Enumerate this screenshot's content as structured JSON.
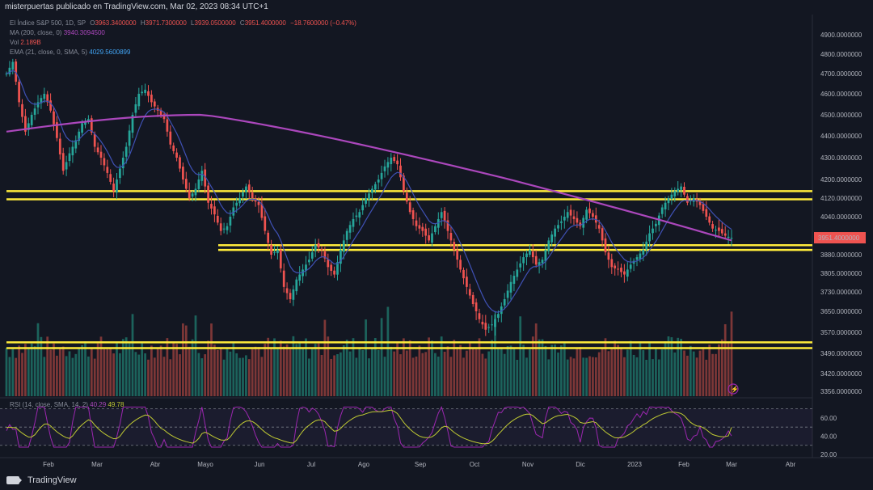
{
  "header": {
    "publisher_line": "misterpuertas publicado en TradingView.com, Mar 02, 2023 08:34 UTC+1"
  },
  "legend": {
    "symbol": "El Índice S&P 500, 1D, SP",
    "open_label": "O",
    "open": "3963.3400000",
    "high_label": "H",
    "high": "3971.7300000",
    "low_label": "L",
    "low": "3939.0500000",
    "close_label": "C",
    "close": "3951.4000000",
    "change": "−18.7600000 (−0.47%)",
    "ma_label": "MA (200, close, 0)",
    "ma_value": "3940.3094500",
    "vol_label": "Vol",
    "vol_value": "2.189B",
    "ema_label": "EMA (21, close, 0, SMA, 5)",
    "ema_value": "4029.5600899"
  },
  "price_axis": {
    "ticks": [
      "4900.0000000",
      "4800.0000000",
      "4700.0000000",
      "4600.0000000",
      "4500.0000000",
      "4400.0000000",
      "4300.0000000",
      "4200.0000000",
      "4120.0000000",
      "4040.0000000",
      "3951.4000000",
      "3880.0000000",
      "3805.0000000",
      "3730.0000000",
      "3650.0000000",
      "3570.0000000",
      "3490.0000000",
      "3420.0000000",
      "3356.0000000"
    ],
    "last_price_label": "3951.4000000",
    "rsi_ticks": [
      "60.00",
      "40.00",
      "20.00"
    ]
  },
  "rsi_legend": {
    "label": "RSI (14, close, SMA, 14, 2)",
    "value1": "40.29",
    "value2": "49.78"
  },
  "time_axis": {
    "labels": [
      "Feb",
      "Mar",
      "Abr",
      "Mayo",
      "Jun",
      "Jul",
      "Ago",
      "Sep",
      "Oct",
      "Nov",
      "Dic",
      "2023",
      "Feb",
      "Mar",
      "Abr"
    ]
  },
  "footer": {
    "brand": "TradingView"
  },
  "colors": {
    "background": "#131722",
    "up": "#26a69a",
    "down": "#ef5350",
    "ma200": "#ab47bc",
    "ema21": "#3f51b5",
    "level": "#ffeb3b",
    "rsi": "#9c27b0",
    "rsi_ma": "#c0ca33"
  },
  "chart_data": {
    "type": "candlestick",
    "symbol": "El Índice S&P 500, 1D, SP",
    "price_range": [
      3356,
      4950
    ],
    "horizontal_levels": [
      4150,
      4115,
      3920,
      3900,
      3532,
      3510
    ],
    "price_path": [
      4700,
      4760,
      4560,
      4420,
      4500,
      4560,
      4600,
      4520,
      4390,
      4240,
      4320,
      4380,
      4460,
      4480,
      4350,
      4300,
      4230,
      4150,
      4250,
      4350,
      4500,
      4600,
      4620,
      4560,
      4520,
      4480,
      4360,
      4300,
      4200,
      4120,
      4160,
      4240,
      4100,
      4050,
      3980,
      4000,
      4080,
      4120,
      4170,
      4120,
      4090,
      3980,
      3880,
      3900,
      3750,
      3700,
      3780,
      3820,
      3860,
      3920,
      3900,
      3830,
      3800,
      3900,
      3980,
      4030,
      4060,
      4120,
      4160,
      4200,
      4260,
      4300,
      4270,
      4150,
      4060,
      4000,
      3980,
      3940,
      4000,
      4060,
      3980,
      3900,
      3820,
      3750,
      3680,
      3620,
      3580,
      3600,
      3640,
      3700,
      3770,
      3820,
      3870,
      3900,
      3840,
      3860,
      3940,
      3990,
      4020,
      4060,
      4030,
      4000,
      4070,
      4040,
      3990,
      3890,
      3830,
      3820,
      3800,
      3840,
      3870,
      3900,
      3970,
      4010,
      4080,
      4120,
      4150,
      4170,
      4100,
      4120,
      4090,
      4040,
      3990,
      3980,
      3960,
      3951
    ],
    "ma200": {
      "start": 4420,
      "peak": 4500,
      "end": 3940
    },
    "ema21": {
      "end": 4029.56
    },
    "rsi": {
      "last": 40.29,
      "ma_last": 49.78,
      "levels": [
        70,
        50,
        30
      ]
    }
  }
}
